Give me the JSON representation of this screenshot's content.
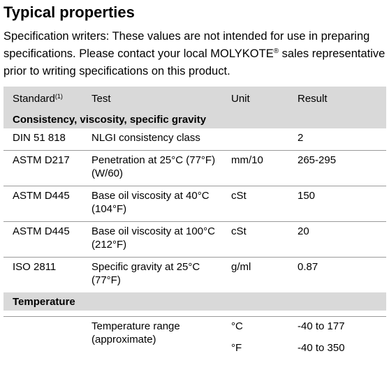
{
  "title": "Typical properties",
  "intro": {
    "text": "Specification writers: These values are not intended for use in preparing specifications. Please contact your local MOLYKOTE",
    "reg": "®",
    "text_end": " sales representative prior to writing specifications on this product."
  },
  "table": {
    "headers": {
      "standard": "Standard",
      "standard_note": "(1)",
      "test": "Test",
      "unit": "Unit",
      "result": "Result"
    },
    "section_consistency": "Consistency, viscosity, specific gravity",
    "rows": [
      {
        "standard": "DIN 51 818",
        "test": "NLGI consistency class",
        "unit": "",
        "result": "2"
      },
      {
        "standard": "ASTM D217",
        "test": "Penetration at 25°C (77°F) (W/60)",
        "unit": "mm/10",
        "result": "265-295"
      },
      {
        "standard": "ASTM D445",
        "test": "Base oil viscosity at 40°C (104°F)",
        "unit": "cSt",
        "result": "150"
      },
      {
        "standard": "ASTM D445",
        "test": "Base oil viscosity at 100°C (212°F)",
        "unit": "cSt",
        "result": "20"
      },
      {
        "standard": "ISO 2811",
        "test": "Specific gravity at 25°C (77°F)",
        "unit": "g/ml",
        "result": "0.87"
      }
    ],
    "section_temperature": "Temperature",
    "temp_row": {
      "standard": "",
      "test": "Temperature range (approximate)",
      "unit_c": "°C",
      "result_c": "-40 to 177",
      "unit_f": "°F",
      "result_f": "-40 to 350"
    }
  }
}
